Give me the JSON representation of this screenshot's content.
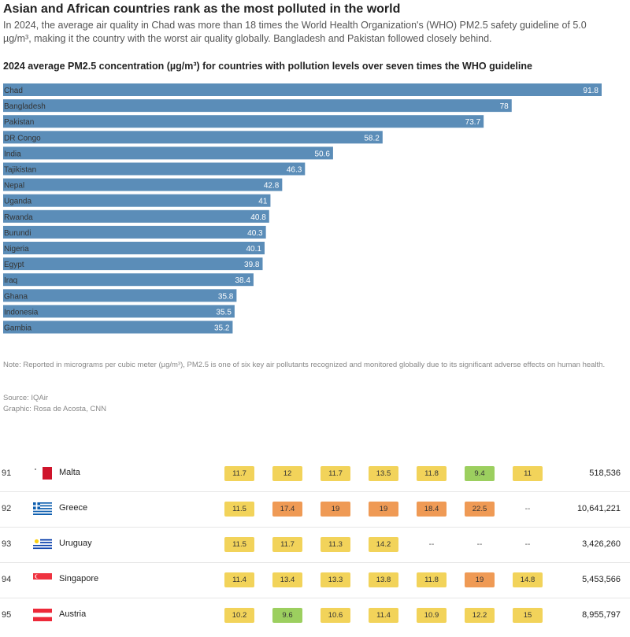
{
  "header": {
    "title": "Asian and African countries rank as the most polluted in the world",
    "subtitle": "In 2024, the average air quality in Chad was more than 18 times the World Health Organization's (WHO) PM2.5 safety guideline of 5.0 µg/m³, making it the country with the worst air quality globally. Bangladesh and Pakistan followed closely behind."
  },
  "chart_data": {
    "type": "bar",
    "orientation": "horizontal",
    "title": "2024 average PM2.5 concentration (µg/m³) for countries with pollution levels over seven times the WHO guideline",
    "categories": [
      "Chad",
      "Bangladesh",
      "Pakistan",
      "DR Congo",
      "India",
      "Tajikistan",
      "Nepal",
      "Uganda",
      "Rwanda",
      "Burundi",
      "Nigeria",
      "Egypt",
      "Iraq",
      "Ghana",
      "Indonesia",
      "Gambia"
    ],
    "values": [
      91.8,
      78,
      73.7,
      58.2,
      50.6,
      46.3,
      42.8,
      41,
      40.8,
      40.3,
      40.1,
      39.8,
      38.4,
      35.8,
      35.5,
      35.2
    ],
    "value_labels": [
      "91.8",
      "78",
      "73.7",
      "58.2",
      "50.6",
      "46.3",
      "42.8",
      "41",
      "40.8",
      "40.3",
      "40.1",
      "39.8",
      "38.4",
      "35.8",
      "35.5",
      "35.2"
    ],
    "xlim": [
      0,
      91.8
    ],
    "bar_color": "#5b8db8",
    "grid": false,
    "legend": "none"
  },
  "footer": {
    "note": "Note: Reported in micrograms per cubic meter (µg/m³), PM2.5 is one of six key air pollutants recognized and monitored globally due to its significant adverse effects on human health.",
    "source": "Source: IQAir",
    "graphic": "Graphic: Rosa de Acosta, CNN"
  },
  "colors": {
    "yellow": "#f2d35a",
    "orange": "#ef9a55",
    "green": "#9ccf5f"
  },
  "table": {
    "rows": [
      {
        "rank": "91",
        "country": "Malta",
        "flag": "malta-flag",
        "cells": [
          {
            "v": "11.7",
            "c": "yellow"
          },
          {
            "v": "12",
            "c": "yellow"
          },
          {
            "v": "11.7",
            "c": "yellow"
          },
          {
            "v": "13.5",
            "c": "yellow"
          },
          {
            "v": "11.8",
            "c": "yellow"
          },
          {
            "v": "9.4",
            "c": "green"
          },
          {
            "v": "11",
            "c": "yellow"
          }
        ],
        "population": "518,536"
      },
      {
        "rank": "92",
        "country": "Greece",
        "flag": "greece-flag",
        "cells": [
          {
            "v": "11.5",
            "c": "yellow"
          },
          {
            "v": "17.4",
            "c": "orange"
          },
          {
            "v": "19",
            "c": "orange"
          },
          {
            "v": "19",
            "c": "orange"
          },
          {
            "v": "18.4",
            "c": "orange"
          },
          {
            "v": "22.5",
            "c": "orange"
          },
          {
            "v": "--",
            "c": "none"
          }
        ],
        "population": "10,641,221"
      },
      {
        "rank": "93",
        "country": "Uruguay",
        "flag": "uruguay-flag",
        "cells": [
          {
            "v": "11.5",
            "c": "yellow"
          },
          {
            "v": "11.7",
            "c": "yellow"
          },
          {
            "v": "11.3",
            "c": "yellow"
          },
          {
            "v": "14.2",
            "c": "yellow"
          },
          {
            "v": "--",
            "c": "none"
          },
          {
            "v": "--",
            "c": "none"
          },
          {
            "v": "--",
            "c": "none"
          }
        ],
        "population": "3,426,260"
      },
      {
        "rank": "94",
        "country": "Singapore",
        "flag": "singapore-flag",
        "cells": [
          {
            "v": "11.4",
            "c": "yellow"
          },
          {
            "v": "13.4",
            "c": "yellow"
          },
          {
            "v": "13.3",
            "c": "yellow"
          },
          {
            "v": "13.8",
            "c": "yellow"
          },
          {
            "v": "11.8",
            "c": "yellow"
          },
          {
            "v": "19",
            "c": "orange"
          },
          {
            "v": "14.8",
            "c": "yellow"
          }
        ],
        "population": "5,453,566"
      },
      {
        "rank": "95",
        "country": "Austria",
        "flag": "austria-flag",
        "cells": [
          {
            "v": "10.2",
            "c": "yellow"
          },
          {
            "v": "9.6",
            "c": "green"
          },
          {
            "v": "10.6",
            "c": "yellow"
          },
          {
            "v": "11.4",
            "c": "yellow"
          },
          {
            "v": "10.9",
            "c": "yellow"
          },
          {
            "v": "12.2",
            "c": "yellow"
          },
          {
            "v": "15",
            "c": "yellow"
          }
        ],
        "population": "8,955,797"
      }
    ]
  }
}
